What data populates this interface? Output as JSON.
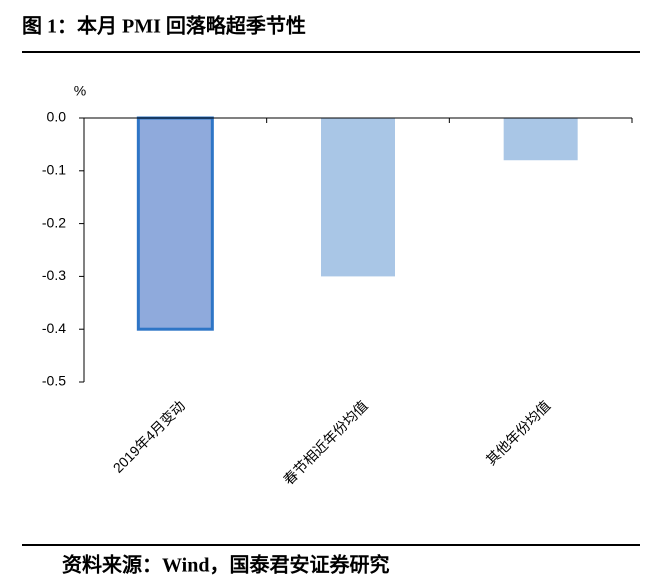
{
  "chart_data": {
    "type": "bar",
    "title": "图 1：本月 PMI 回落略超季节性",
    "y_unit": "%",
    "source": "资料来源：Wind，国泰君安证券研究",
    "categories": [
      "2019年4月变动",
      "春节相近年份均值",
      "其他年份均值"
    ],
    "values": [
      -0.4,
      -0.3,
      -0.08
    ],
    "colors": [
      "#8faadc",
      "#a9c6e6",
      "#a9c6e6"
    ],
    "edge_colors": [
      "#2e75c6",
      null,
      null
    ],
    "ylim": [
      -0.5,
      0
    ],
    "yticks": [
      {
        "value": 0,
        "label": "0.0"
      },
      -0.1,
      -0.2,
      -0.3,
      -0.4,
      -0.5
    ]
  }
}
